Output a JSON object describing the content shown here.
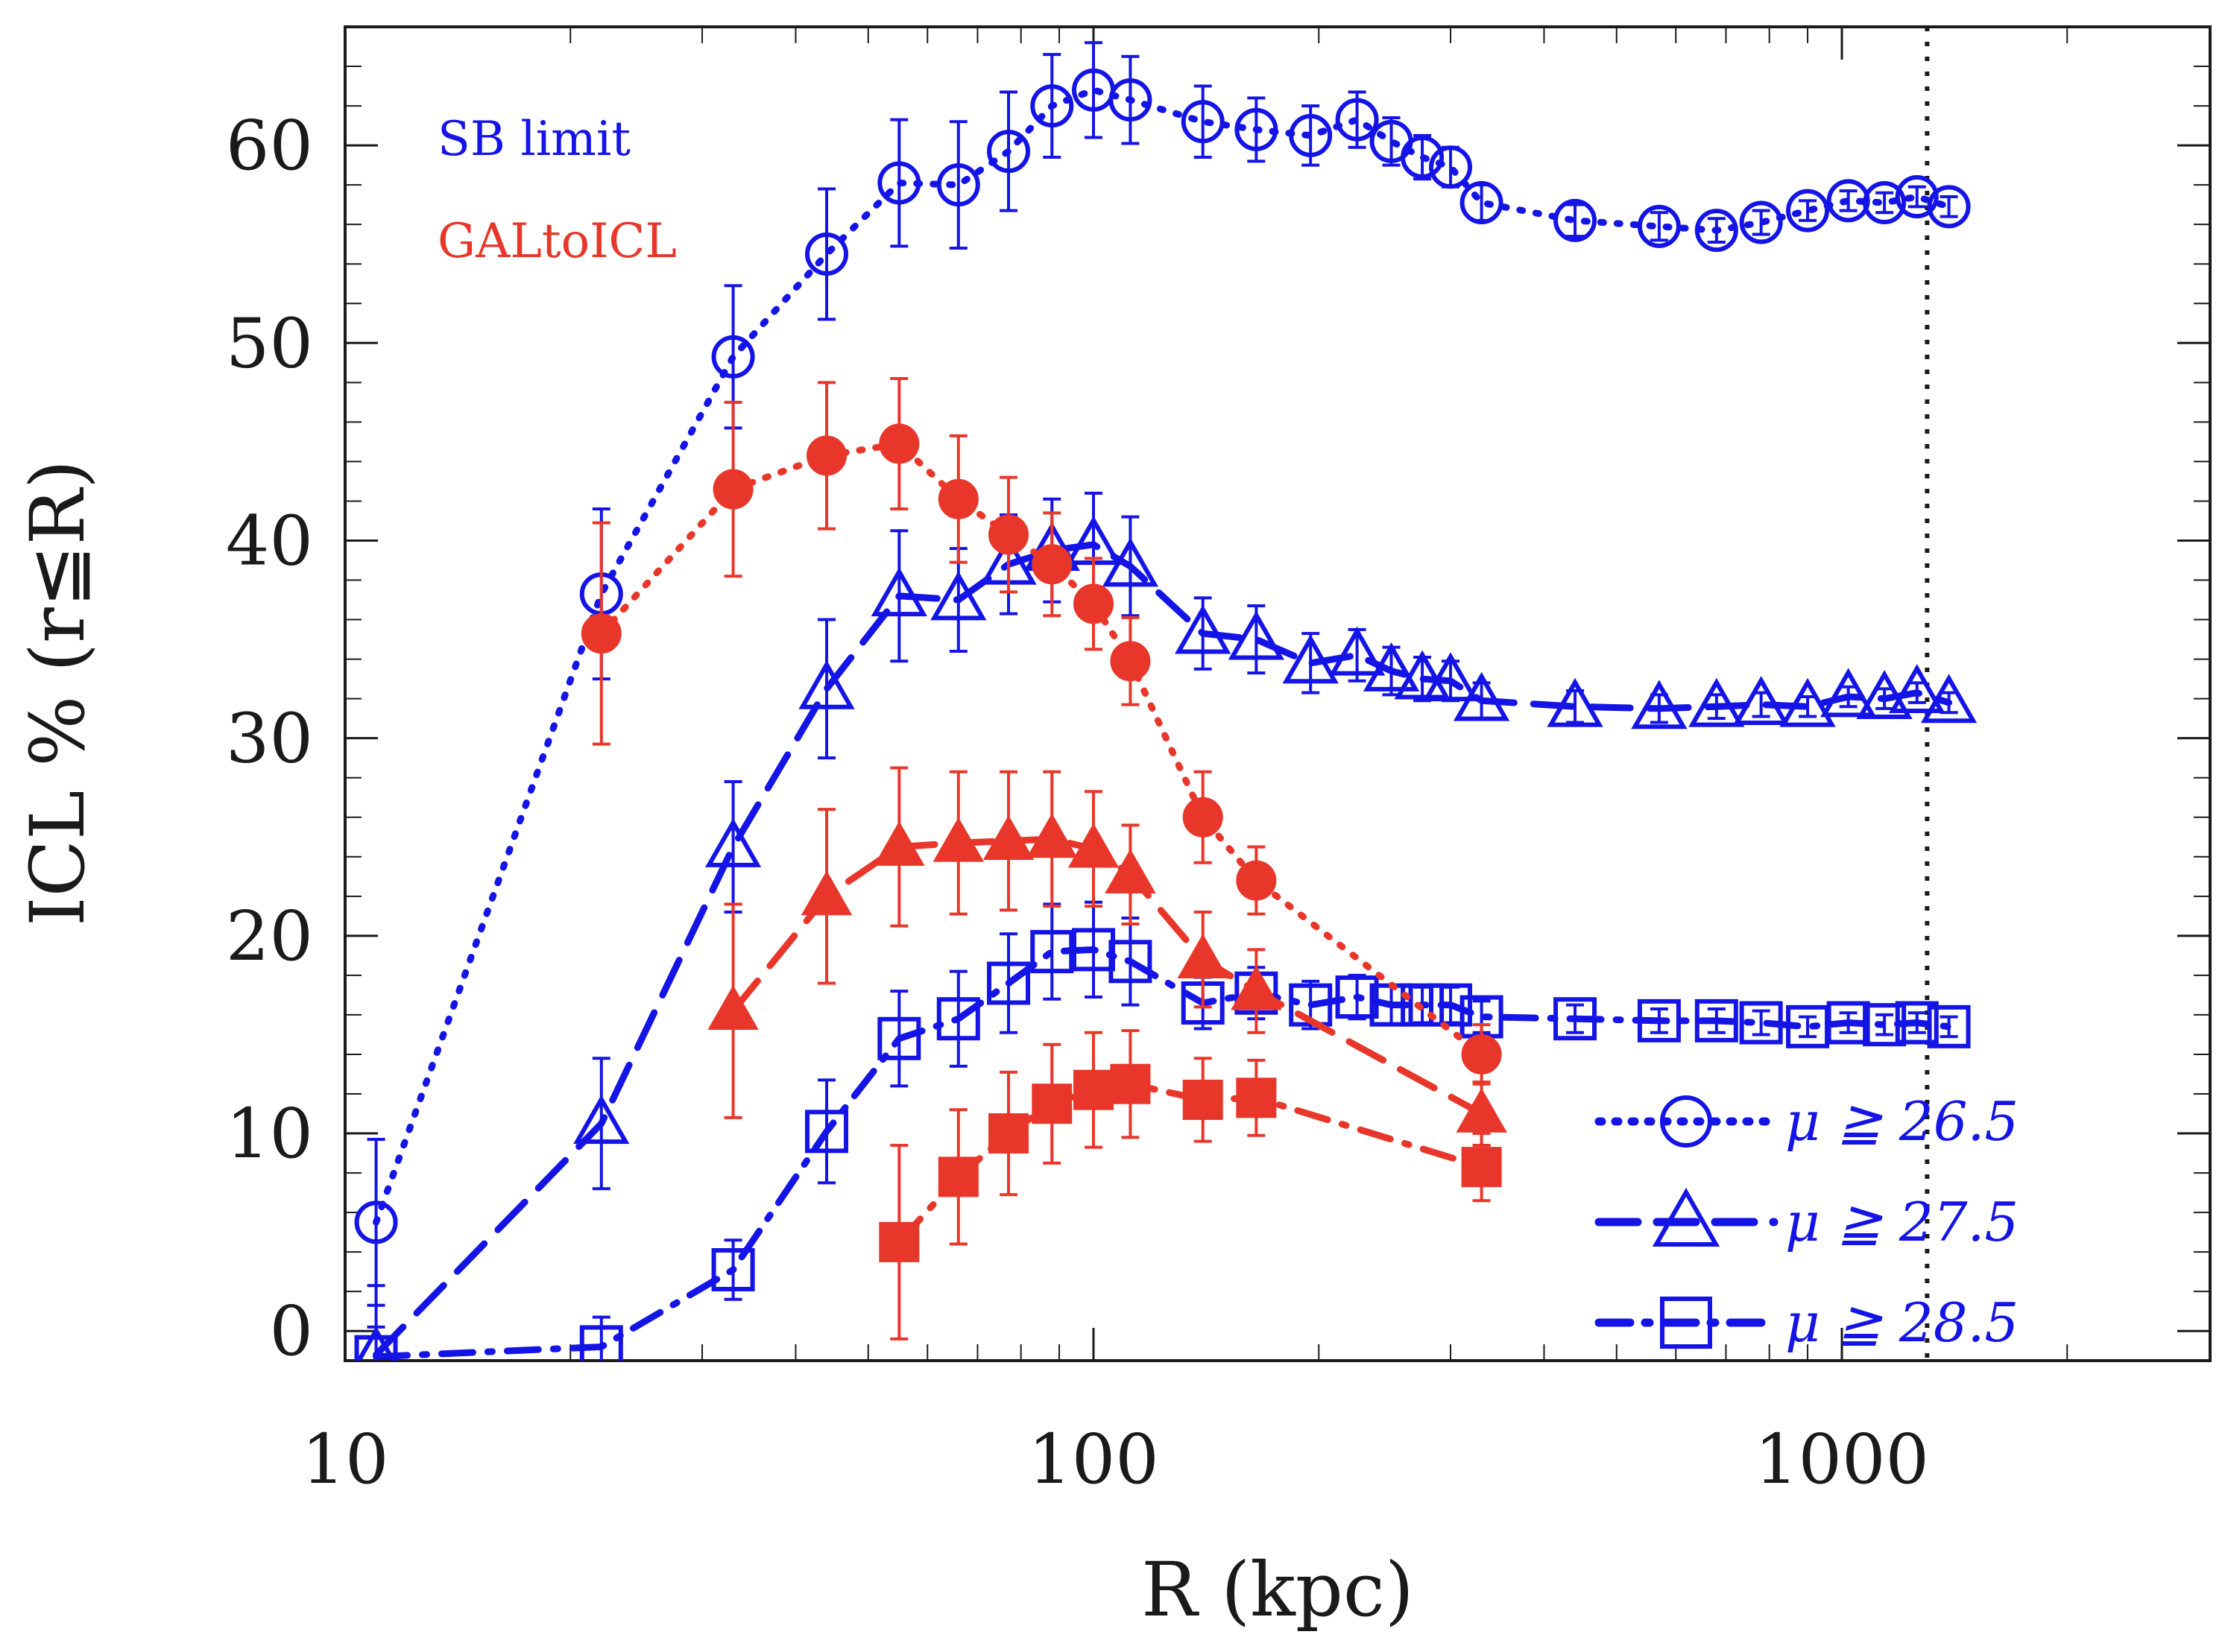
{
  "chart_data": {
    "type": "line",
    "xscale": "log",
    "xlim": [
      10,
      2500
    ],
    "ylim": [
      -1.5,
      66
    ],
    "xlabel": "R (kpc)",
    "ylabel": "ICL % (r≦R)",
    "xticks": [
      10,
      100,
      1000
    ],
    "xtick_labels": [
      "10",
      "100",
      "1000"
    ],
    "yticks": [
      0,
      10,
      20,
      30,
      40,
      50,
      60
    ],
    "ytick_labels": [
      "0",
      "10",
      "20",
      "30",
      "40",
      "50",
      "60"
    ],
    "vline_x": 1300,
    "annotations": [
      {
        "text": "SB limit",
        "color": "#1414e6"
      },
      {
        "text": "GALtoICL",
        "color": "#e8372a"
      }
    ],
    "legend": [
      {
        "label": "μ ≧ 26.5",
        "marker": "circle",
        "dash": "dotted"
      },
      {
        "label": "μ ≧ 27.5",
        "marker": "triangle",
        "dash": "dashed"
      },
      {
        "label": "μ ≧ 28.5",
        "marker": "square",
        "dash": "dashdot"
      }
    ],
    "series": [
      {
        "name": "SB limit μ ≧ 26.5",
        "group": "SB limit",
        "color": "#1414e6",
        "marker": "circle",
        "filled": false,
        "dash": "dotted",
        "x": [
          11,
          22,
          33,
          44,
          55,
          66,
          77,
          88,
          100,
          112,
          140,
          165,
          195,
          225,
          250,
          275,
          300,
          330,
          440,
          570,
          680,
          780,
          900,
          1020,
          1140,
          1260,
          1390
        ],
        "y": [
          5.5,
          37.3,
          49.3,
          54.5,
          58.1,
          58,
          59.7,
          62,
          62.8,
          62.3,
          61.2,
          60.8,
          60.5,
          61.3,
          60.2,
          59.4,
          58.9,
          57.1,
          56.2,
          55.9,
          55.7,
          56.1,
          56.7,
          57.2,
          57.1,
          57.4,
          56.9
        ],
        "err": [
          4.2,
          4.3,
          3.6,
          3.3,
          3.2,
          3.2,
          3,
          2.6,
          2.4,
          2.2,
          1.8,
          1.6,
          1.5,
          1.4,
          1.2,
          1.1,
          1,
          0.9,
          0.8,
          0.7,
          0.6,
          0.6,
          0.5,
          0.5,
          0.5,
          0.5,
          0.5
        ]
      },
      {
        "name": "SB limit μ ≧ 27.5",
        "group": "SB limit",
        "color": "#1414e6",
        "marker": "triangle",
        "filled": false,
        "dash": "dashed",
        "x": [
          11,
          22,
          33,
          44,
          55,
          66,
          77,
          88,
          100,
          112,
          140,
          165,
          195,
          225,
          250,
          275,
          300,
          330,
          440,
          570,
          680,
          780,
          900,
          1020,
          1140,
          1260,
          1390
        ],
        "y": [
          -1.2,
          10.5,
          24.5,
          32.5,
          37.2,
          37,
          38.8,
          39.5,
          39.8,
          38.7,
          35.3,
          35,
          33.8,
          34.2,
          33.4,
          33,
          32.9,
          31.9,
          31.6,
          31.5,
          31.6,
          31.7,
          31.6,
          32.1,
          32,
          32.3,
          31.8
        ],
        "err": [
          3.5,
          3.3,
          3.3,
          3.5,
          3.3,
          2.6,
          2.5,
          2.6,
          2.6,
          2.5,
          1.8,
          1.7,
          1.5,
          1.3,
          1.2,
          1.1,
          1,
          0.9,
          0.8,
          0.7,
          0.6,
          0.6,
          0.5,
          0.5,
          0.5,
          0.5,
          0.5
        ]
      },
      {
        "name": "SB limit μ ≧ 28.5",
        "group": "SB limit",
        "color": "#1414e6",
        "marker": "square",
        "filled": false,
        "dash": "dashdot",
        "x": [
          11,
          22,
          33,
          44,
          55,
          66,
          77,
          88,
          100,
          112,
          140,
          165,
          195,
          225,
          250,
          275,
          300,
          330,
          440,
          570,
          680,
          780,
          900,
          1020,
          1140,
          1260,
          1390
        ],
        "y": [
          -1.3,
          -0.8,
          3.1,
          10.1,
          14.8,
          15.8,
          17.6,
          19.2,
          19.3,
          18.7,
          16.6,
          17.1,
          16.5,
          16.9,
          16.5,
          16.5,
          16.5,
          15.9,
          15.8,
          15.7,
          15.7,
          15.6,
          15.4,
          15.6,
          15.5,
          15.6,
          15.4
        ],
        "err": [
          1.5,
          1.5,
          1.5,
          2.6,
          2.4,
          2.4,
          2.5,
          2.4,
          2.4,
          2.2,
          1.3,
          1.3,
          1.2,
          1.1,
          1,
          0.9,
          0.9,
          0.8,
          0.7,
          0.6,
          0.6,
          0.6,
          0.5,
          0.5,
          0.5,
          0.5,
          0.5
        ]
      },
      {
        "name": "GALtoICL μ ≧ 26.5",
        "group": "GALtoICL",
        "color": "#e8372a",
        "marker": "circle",
        "filled": true,
        "dash": "dotted",
        "x": [
          22,
          33,
          44,
          55,
          66,
          77,
          88,
          100,
          112,
          140,
          165,
          330
        ],
        "y": [
          35.3,
          42.6,
          44.3,
          44.9,
          42.1,
          40.3,
          38.8,
          36.8,
          33.9,
          26,
          22.8,
          14
        ],
        "err": [
          5.6,
          4.4,
          3.7,
          3.3,
          3.2,
          2.9,
          2.6,
          2.3,
          2.2,
          2.3,
          1.7,
          1.5
        ]
      },
      {
        "name": "GALtoICL μ ≧ 27.5",
        "group": "GALtoICL",
        "color": "#e8372a",
        "marker": "triangle",
        "filled": true,
        "dash": "dashed",
        "x": [
          33,
          44,
          55,
          66,
          77,
          88,
          100,
          112,
          140,
          165,
          330
        ],
        "y": [
          16.2,
          22,
          24.5,
          24.7,
          24.8,
          24.9,
          24.4,
          23.1,
          18.8,
          17.2,
          11
        ],
        "err": [
          5.4,
          4.4,
          4,
          3.6,
          3.5,
          3.4,
          2.9,
          2.5,
          2.4,
          2.1,
          1.6
        ]
      },
      {
        "name": "GALtoICL μ ≧ 28.5",
        "group": "GALtoICL",
        "color": "#e8372a",
        "marker": "square",
        "filled": true,
        "dash": "dashdot",
        "x": [
          55,
          66,
          77,
          88,
          100,
          112,
          140,
          165,
          330
        ],
        "y": [
          4.5,
          7.8,
          10,
          11.5,
          12.2,
          12.5,
          11.7,
          11.8,
          8.3
        ],
        "err": [
          4.9,
          3.4,
          3.1,
          3,
          2.9,
          2.7,
          2.1,
          1.9,
          1.7
        ]
      }
    ]
  }
}
